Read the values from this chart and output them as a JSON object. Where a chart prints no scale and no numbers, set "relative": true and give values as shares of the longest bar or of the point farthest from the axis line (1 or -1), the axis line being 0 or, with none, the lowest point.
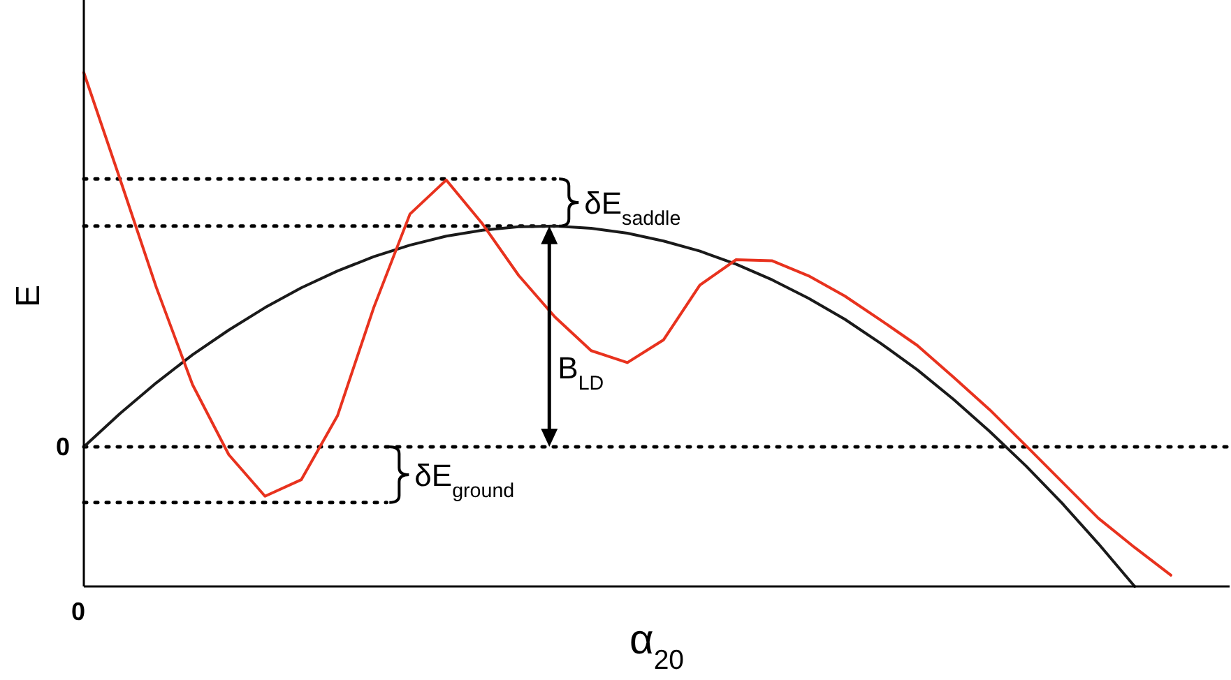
{
  "chart_data": {
    "type": "line",
    "relative": true,
    "xlabel": "α$_{20}$",
    "ylabel": "E",
    "categories": [
      null,
      null,
      null,
      null,
      null,
      null,
      null,
      null,
      null,
      null,
      null,
      null,
      null,
      null,
      null,
      null,
      null,
      null,
      null,
      null,
      null,
      null,
      null,
      null,
      null,
      null,
      null,
      null,
      null,
      null,
      null
    ],
    "series": [
      {
        "color": "#1a1a1a",
        "values": [
          0,
          0.089,
          0.171,
          0.246,
          0.312,
          0.372,
          0.425,
          0.47,
          0.508,
          0.539,
          0.563,
          0.579,
          0.588,
          0.59,
          0.584,
          0.571,
          0.55,
          0.523,
          0.488,
          0.446,
          0.397,
          0.341,
          0.276,
          0.206,
          0.127,
          0.041,
          -0.051,
          -0.151,
          -0.259,
          -0.373,
          null
        ]
      },
      {
        "color": "#e8321e",
        "values": [
          1,
          0.715,
          0.426,
          0.166,
          -0.021,
          -0.132,
          -0.088,
          0.083,
          0.372,
          0.622,
          0.713,
          0.596,
          0.458,
          0.347,
          0.257,
          0.225,
          0.286,
          0.432,
          0.5,
          0.497,
          0.457,
          0.403,
          0.338,
          0.271,
          0.186,
          0.099,
          0.003,
          -0.094,
          -0.191,
          -0.269,
          -0.343
        ]
      }
    ],
    "ref_lines": [
      {
        "axis": "y",
        "value": 0,
        "label": "0",
        "line_style": "dotted"
      },
      {
        "axis": "y",
        "value": 0.716,
        "line_style": "dotted"
      },
      {
        "axis": "y",
        "value": 0.59,
        "line_style": "dotted"
      },
      {
        "axis": "y",
        "value": -0.149,
        "line_style": "dotted"
      }
    ],
    "annotations": [
      "δE$_{saddle}$",
      "δE$_{ground}$",
      "B$_{LD}$",
      "0"
    ],
    "marker": "none",
    "line_style": "solid"
  }
}
